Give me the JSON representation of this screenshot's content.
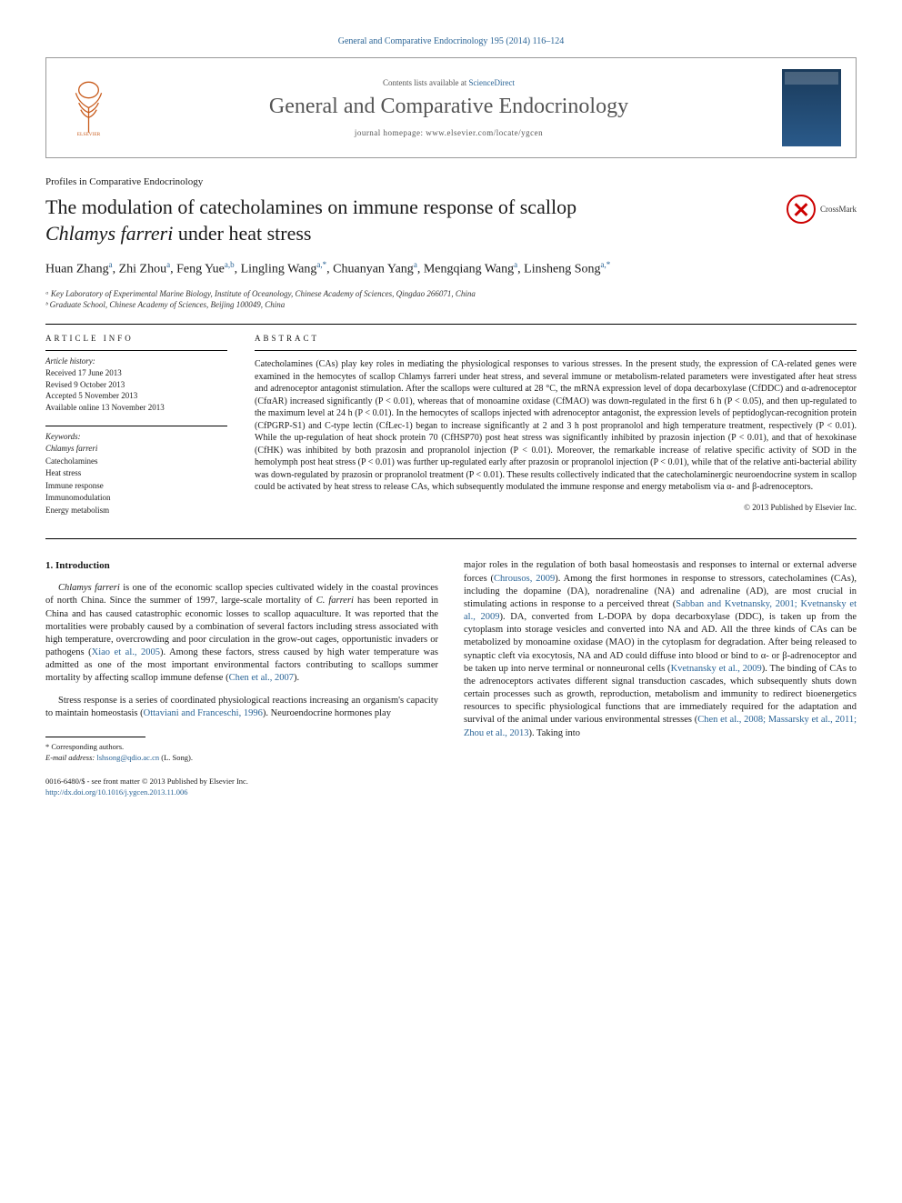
{
  "citation": "General and Comparative Endocrinology 195 (2014) 116–124",
  "header": {
    "contents_prefix": "Contents lists available at ",
    "contents_link": "ScienceDirect",
    "journal_name": "General and Comparative Endocrinology",
    "homepage_prefix": "journal homepage: ",
    "homepage_url": "www.elsevier.com/locate/ygcen"
  },
  "profile_line": "Profiles in Comparative Endocrinology",
  "title_line1": "The modulation of catecholamines on immune response of scallop",
  "title_line2_italic": "Chlamys farreri",
  "title_line2_rest": " under heat stress",
  "crossmark_label": "CrossMark",
  "authors_html": "Huan Zhang<sup>a</sup>, Zhi Zhou<sup>a</sup>, Feng Yue<sup>a,b</sup>, Lingling Wang<sup>a,*</sup>, Chuanyan Yang<sup>a</sup>, Mengqiang Wang<sup>a</sup>, Linsheng Song<sup>a,*</sup>",
  "affiliations": [
    "ᵃ Key Laboratory of Experimental Marine Biology, Institute of Oceanology, Chinese Academy of Sciences, Qingdao 266071, China",
    "ᵇ Graduate School, Chinese Academy of Sciences, Beijing 100049, China"
  ],
  "article_info": {
    "heading": "ARTICLE INFO",
    "history_label": "Article history:",
    "history": [
      "Received 17 June 2013",
      "Revised 9 October 2013",
      "Accepted 5 November 2013",
      "Available online 13 November 2013"
    ],
    "keywords_label": "Keywords:",
    "keywords": [
      "Chlamys farreri",
      "Catecholamines",
      "Heat stress",
      "Immune response",
      "Immunomodulation",
      "Energy metabolism"
    ]
  },
  "abstract": {
    "heading": "ABSTRACT",
    "text": "Catecholamines (CAs) play key roles in mediating the physiological responses to various stresses. In the present study, the expression of CA-related genes were examined in the hemocytes of scallop Chlamys farreri under heat stress, and several immune or metabolism-related parameters were investigated after heat stress and adrenoceptor antagonist stimulation. After the scallops were cultured at 28 °C, the mRNA expression level of dopa decarboxylase (CfDDC) and α-adrenoceptor (CfαAR) increased significantly (P < 0.01), whereas that of monoamine oxidase (CfMAO) was down-regulated in the first 6 h (P < 0.05), and then up-regulated to the maximum level at 24 h (P < 0.01). In the hemocytes of scallops injected with adrenoceptor antagonist, the expression levels of peptidoglycan-recognition protein (CfPGRP-S1) and C-type lectin (CfLec-1) began to increase significantly at 2 and 3 h post propranolol and high temperature treatment, respectively (P < 0.01). While the up-regulation of heat shock protein 70 (CfHSP70) post heat stress was significantly inhibited by prazosin injection (P < 0.01), and that of hexokinase (CfHK) was inhibited by both prazosin and propranolol injection (P < 0.01). Moreover, the remarkable increase of relative specific activity of SOD in the hemolymph post heat stress (P < 0.01) was further up-regulated early after prazosin or propranolol injection (P < 0.01), while that of the relative anti-bacterial ability was down-regulated by prazosin or propranolol treatment (P < 0.01). These results collectively indicated that the catecholaminergic neuroendocrine system in scallop could be activated by heat stress to release CAs, which subsequently modulated the immune response and energy metabolism via α- and β-adrenoceptors.",
    "copyright": "© 2013 Published by Elsevier Inc."
  },
  "intro": {
    "heading": "1. Introduction",
    "p1_pre": "",
    "p1_italic1": "Chlamys farreri",
    "p1_mid1": " is one of the economic scallop species cultivated widely in the coastal provinces of north China. Since the summer of 1997, large-scale mortality of ",
    "p1_italic2": "C. farreri",
    "p1_mid2": " has been reported in China and has caused catastrophic economic losses to scallop aquaculture. It was reported that the mortalities were probably caused by a combination of several factors including stress associated with high temperature, overcrowding and poor circulation in the grow-out cages, opportunistic invaders or pathogens (",
    "p1_ref1": "Xiao et al., 2005",
    "p1_mid3": "). Among these factors, stress caused by high water temperature was admitted as one of the most important environmental factors contributing to scallops summer mortality by affecting scallop immune defense (",
    "p1_ref2": "Chen et al., 2007",
    "p1_end": ").",
    "p2_start": "Stress response is a series of coordinated physiological reactions increasing an organism's capacity to maintain homeostasis (",
    "p2_ref1": "Ottaviani and Franceschi, 1996",
    "p2_end": "). Neuroendocrine hormones play",
    "col2_start": "major roles in the regulation of both basal homeostasis and responses to internal or external adverse forces (",
    "col2_ref1": "Chrousos, 2009",
    "col2_mid1": "). Among the first hormones in response to stressors, catecholamines (CAs), including the dopamine (DA), noradrenaline (NA) and adrenaline (AD), are most crucial in stimulating actions in response to a perceived threat (",
    "col2_ref2": "Sabban and Kvetnansky, 2001; Kvetnansky et al., 2009",
    "col2_mid2": "). DA, converted from L-DOPA by dopa decarboxylase (DDC), is taken up from the cytoplasm into storage vesicles and converted into NA and AD. All the three kinds of CAs can be metabolized by monoamine oxidase (MAO) in the cytoplasm for degradation. After being released to synaptic cleft via exocytosis, NA and AD could diffuse into blood or bind to α- or β-adrenoceptor and be taken up into nerve terminal or nonneuronal cells (",
    "col2_ref3": "Kvetnansky et al., 2009",
    "col2_mid3": "). The binding of CAs to the adrenoceptors activates different signal transduction cascades, which subsequently shuts down certain processes such as growth, reproduction, metabolism and immunity to redirect bioenergetics resources to specific physiological functions that are immediately required for the adaptation and survival of the animal under various environmental stresses (",
    "col2_ref4": "Chen et al., 2008; Massarsky et al., 2011; Zhou et al., 2013",
    "col2_end": "). Taking into"
  },
  "footer": {
    "corresp_label": "* Corresponding authors.",
    "email_label": "E-mail address: ",
    "email": "lshsong@qdio.ac.cn",
    "email_who": " (L. Song).",
    "issn_line": "0016-6480/$ - see front matter © 2013 Published by Elsevier Inc.",
    "doi": "http://dx.doi.org/10.1016/j.ygcen.2013.11.006"
  }
}
